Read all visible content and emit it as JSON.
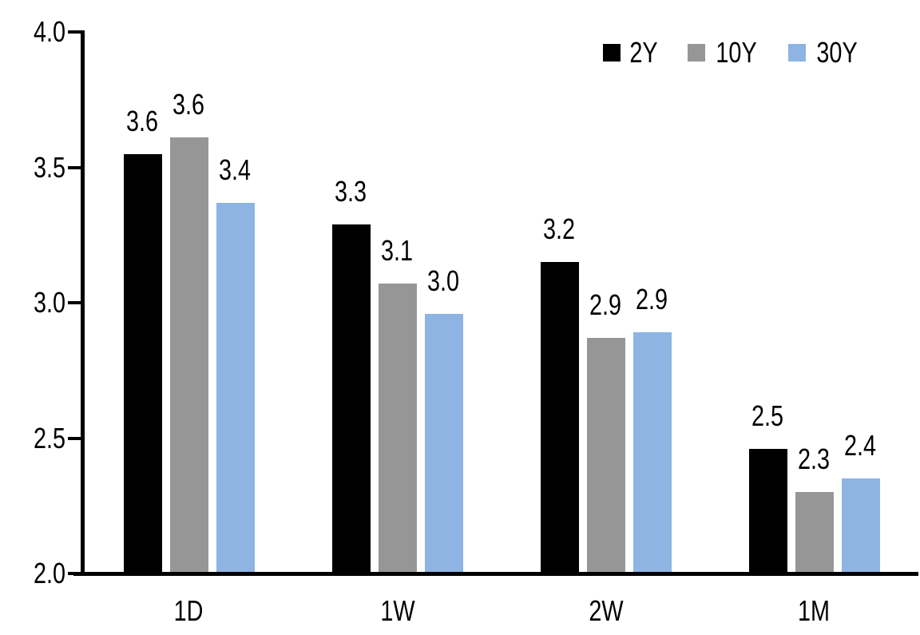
{
  "chart_data": {
    "type": "bar",
    "title": "",
    "xlabel": "",
    "ylabel": "",
    "categories": [
      "1D",
      "1W",
      "2W",
      "1M"
    ],
    "series": [
      {
        "name": "2Y",
        "color": "#000000",
        "values": [
          3.55,
          3.29,
          3.15,
          2.46
        ],
        "labels": [
          "3.6",
          "3.3",
          "3.2",
          "2.5"
        ]
      },
      {
        "name": "10Y",
        "color": "#969696",
        "values": [
          3.61,
          3.07,
          2.87,
          2.3
        ],
        "labels": [
          "3.6",
          "3.1",
          "2.9",
          "2.3"
        ]
      },
      {
        "name": "30Y",
        "color": "#8DB4E2",
        "values": [
          3.37,
          2.96,
          2.89,
          2.35
        ],
        "labels": [
          "3.4",
          "3.0",
          "2.9",
          "2.4"
        ]
      }
    ],
    "ylim": [
      2.0,
      4.0
    ],
    "yticks": {
      "values": [
        4.0,
        3.5,
        3.0,
        2.5,
        2.0
      ],
      "labels": [
        "4.0",
        "3.5",
        "3.0",
        "2.5",
        "2.0"
      ]
    },
    "legend": {
      "position": "top-right",
      "entries": [
        "2Y",
        "10Y",
        "30Y"
      ]
    },
    "grid": false,
    "axis_color": "#000000",
    "background_color": "#ffffff",
    "value_labels_shown": true
  }
}
